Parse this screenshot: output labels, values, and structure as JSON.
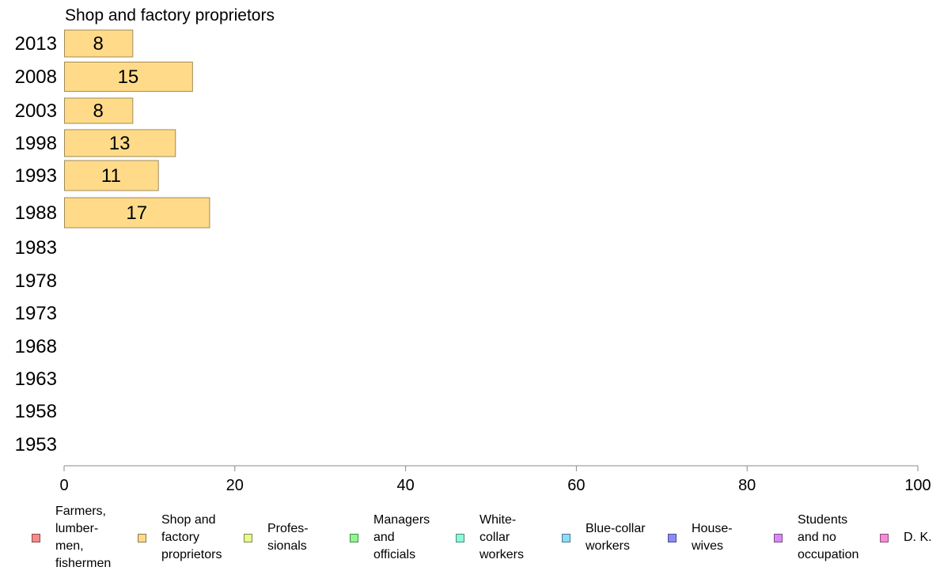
{
  "chart_data": {
    "type": "bar",
    "orientation": "horizontal",
    "title": "Shop and factory proprietors",
    "categories": [
      "2013",
      "2008",
      "2003",
      "1998",
      "1993",
      "1988",
      "1983",
      "1978",
      "1973",
      "1968",
      "1963",
      "1958",
      "1953"
    ],
    "series": [
      {
        "name": "Shop and factory proprietors",
        "values": [
          8,
          15,
          8,
          13,
          11,
          17,
          null,
          null,
          null,
          null,
          null,
          null,
          null
        ]
      }
    ],
    "data_labels": [
      "8",
      "15",
      "8",
      "13",
      "11",
      "17",
      "",
      "",
      "",
      "",
      "",
      "",
      ""
    ],
    "xlim": [
      0,
      100
    ],
    "x_ticks": [
      "0",
      "20",
      "40",
      "60",
      "80",
      "100"
    ],
    "xlabel": "",
    "ylabel": "",
    "grid": false,
    "legend_position": "bottom",
    "bar_color": "#FFDB89",
    "bar_stroke": "#A08A5A",
    "legend": [
      {
        "label": "Farmers,\nlumber-\nmen,\nfishermen",
        "color": "#F8888A"
      },
      {
        "label": "Shop and\nfactory\nproprietors",
        "color": "#FFDB89"
      },
      {
        "label": "Profes-\nsionals",
        "color": "#E5FB8B"
      },
      {
        "label": "Managers\nand\nofficials",
        "color": "#8BF98B"
      },
      {
        "label": "White-\ncollar\nworkers",
        "color": "#88FBDA"
      },
      {
        "label": "Blue-collar\nworkers",
        "color": "#8ADCFB"
      },
      {
        "label": "House-\nwives",
        "color": "#8A8AF8"
      },
      {
        "label": "Students\nand no\noccupation",
        "color": "#DA88F8"
      },
      {
        "label": "D. K.",
        "color": "#F98ADA"
      }
    ]
  }
}
